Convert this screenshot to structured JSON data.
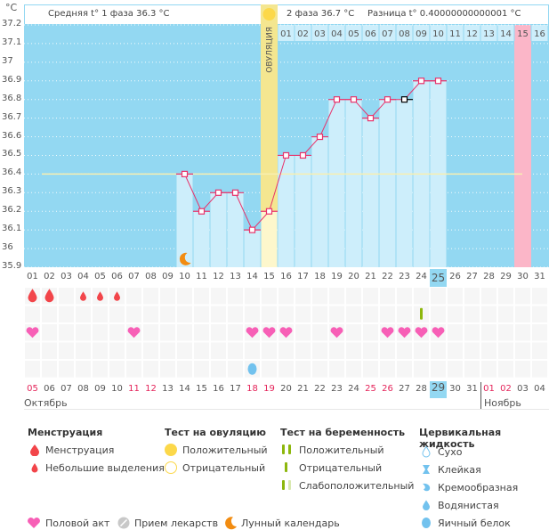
{
  "header": {
    "unit": "°C",
    "phase1_label": "Средняя t° 1 фаза 36.3 °C",
    "phase2_label": "2 фаза 36.7 °C",
    "diff_label": "Разница t° 0.40000000000001 °C",
    "ovulation_label": "ОВУЛЯЦИЯ"
  },
  "colors": {
    "chart_bg": "#93d8f2",
    "bar_fill": "#cdeefb",
    "line": "#e8336b",
    "ovulation_band": "#f4e690",
    "ovulation_lower": "#fdf7cc",
    "menses_expected": "#fbb6c8",
    "coverline": "#f8efb0",
    "weekend": "#e4245a",
    "today_bg": "#93d8f2",
    "heart": "#f75fb6",
    "drop": "#f2454a",
    "egg_white": "#72c2ee",
    "preg_test": "#8db70d",
    "sun": "#fcd84a",
    "moon": "#f28c11"
  },
  "chart_data": {
    "type": "line",
    "title": "",
    "ylabel": "°C",
    "ylim": [
      35.9,
      37.2
    ],
    "yticks": [
      "37.2",
      "37.1",
      "37",
      "36.9",
      "36.8",
      "36.7",
      "36.6",
      "36.5",
      "36.4",
      "36.3",
      "36.2",
      "36.1",
      "36",
      "35.9"
    ],
    "cycle_days": [
      "01",
      "02",
      "03",
      "04",
      "05",
      "06",
      "07",
      "08",
      "09",
      "10",
      "11",
      "12",
      "13",
      "14",
      "15",
      "16",
      "17",
      "18",
      "19",
      "20",
      "21",
      "22",
      "23",
      "24",
      "25",
      "26",
      "27",
      "28",
      "29",
      "30",
      "31"
    ],
    "temperatures": [
      null,
      null,
      null,
      null,
      null,
      null,
      null,
      null,
      null,
      36.4,
      36.2,
      36.3,
      36.3,
      36.1,
      36.2,
      36.5,
      36.5,
      36.6,
      36.8,
      36.8,
      36.7,
      36.8,
      36.8,
      36.9,
      36.9,
      null,
      null,
      null,
      null,
      null,
      null
    ],
    "selected_day_index": 22,
    "coverline": 36.4,
    "ovulation_day_index": 14,
    "phase2_days": [
      "01",
      "02",
      "03",
      "04",
      "05",
      "06",
      "07",
      "08",
      "09",
      "10",
      "11",
      "12",
      "13",
      "14",
      "15",
      "16"
    ],
    "expected_menses_day_index": 29,
    "today_cycle_day": "25",
    "calendar_dates": [
      "05",
      "06",
      "07",
      "08",
      "09",
      "10",
      "11",
      "12",
      "13",
      "14",
      "15",
      "16",
      "17",
      "18",
      "19",
      "20",
      "21",
      "22",
      "23",
      "24",
      "25",
      "26",
      "27",
      "28",
      "29",
      "30",
      "31",
      "01",
      "02",
      "03",
      "04"
    ],
    "weekend_indices": [
      0,
      6,
      7,
      13,
      14,
      20,
      21,
      27,
      28
    ],
    "today_date_index": 24,
    "months": [
      {
        "label": "Октябрь",
        "start_index": 0
      },
      {
        "label": "Ноябрь",
        "start_index": 27
      }
    ],
    "menstruation": [
      {
        "index": 0,
        "type": "heavy"
      },
      {
        "index": 1,
        "type": "heavy"
      },
      {
        "index": 3,
        "type": "light"
      },
      {
        "index": 4,
        "type": "light"
      },
      {
        "index": 5,
        "type": "light"
      }
    ],
    "pregnancy_test": [
      {
        "index": 23,
        "type": "negative"
      }
    ],
    "intercourse": [
      0,
      6,
      13,
      14,
      15,
      18,
      21,
      22,
      23,
      24
    ],
    "cervical_fluid": [
      {
        "index": 13,
        "type": "egg_white"
      }
    ],
    "moon": [
      {
        "index": 9
      }
    ]
  },
  "legend": {
    "menstruation": {
      "title": "Менструация",
      "items": [
        "Менструация",
        "Небольшие выделения"
      ]
    },
    "ovulation_test": {
      "title": "Тест на овуляцию",
      "items": [
        "Положительный",
        "Отрицательный"
      ]
    },
    "pregnancy_test": {
      "title": "Тест на беременность",
      "items": [
        "Положительный",
        "Отрицательный",
        "Слабоположительный"
      ]
    },
    "cervical_fluid": {
      "title": "Цервикальная жидкость",
      "items": [
        "Сухо",
        "Клейкая",
        "Кремообразная",
        "Водянистая",
        "Яичный белок"
      ]
    },
    "bottom": [
      "Половой акт",
      "Прием лекарств",
      "Лунный календарь"
    ]
  }
}
